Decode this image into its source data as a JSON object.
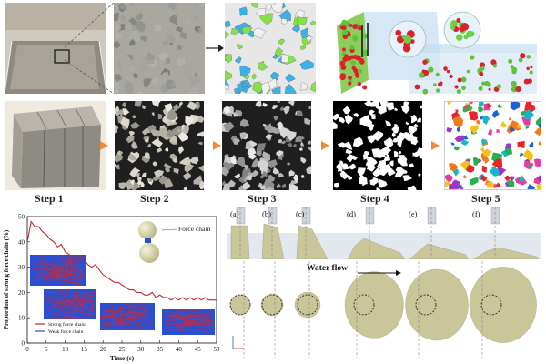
{
  "steps": [
    "Step 1",
    "Step 2",
    "Step 3",
    "Step 4",
    "Step 5"
  ],
  "force_chain_label": "Force chain",
  "water_flow_label": "Water flow",
  "panel_labels": [
    "(a)",
    "(b)",
    "(c)",
    "(d)",
    "(e)",
    "(f)"
  ],
  "colors": {
    "arrow": "#ee8a3a",
    "strong_chain": "#c8262c",
    "weak_chain": "#2a4fd0",
    "particle": "#c9c79a"
  },
  "chart_data": {
    "type": "line",
    "xlabel": "Time (s)",
    "ylabel": "Proportion of strong force chain (%)",
    "xlim": [
      0,
      50
    ],
    "ylim": [
      0,
      50
    ],
    "xticks": [
      "0",
      "5",
      "10",
      "15",
      "20",
      "25",
      "30",
      "35",
      "40",
      "45",
      "50"
    ],
    "yticks": [
      "0",
      "10",
      "20",
      "30",
      "40",
      "50"
    ],
    "legend": [
      "Strong force chain",
      "Weak force chain"
    ],
    "x": [
      0,
      1,
      2,
      3,
      4,
      5,
      6,
      7,
      8,
      9,
      10,
      11,
      12,
      13,
      14,
      15,
      16,
      17,
      18,
      19,
      20,
      21,
      22,
      23,
      24,
      25,
      26,
      27,
      28,
      29,
      30,
      31,
      32,
      33,
      34,
      35,
      36,
      37,
      38,
      39,
      40,
      41,
      42,
      43,
      44,
      45,
      46,
      47,
      48,
      49,
      50
    ],
    "series": [
      {
        "name": "Strong force chain",
        "values": [
          40,
          48,
          46,
          46,
          44,
          43,
          41,
          40,
          38,
          39,
          36,
          35,
          34,
          33,
          34,
          33,
          31,
          30,
          31,
          29,
          27,
          26,
          25,
          24,
          24,
          23,
          22,
          21,
          21,
          20,
          20,
          19,
          19,
          20,
          18,
          19,
          18,
          18,
          17,
          18,
          17,
          18,
          17,
          18,
          17,
          18,
          17,
          18,
          17,
          17,
          17
        ]
      }
    ]
  }
}
